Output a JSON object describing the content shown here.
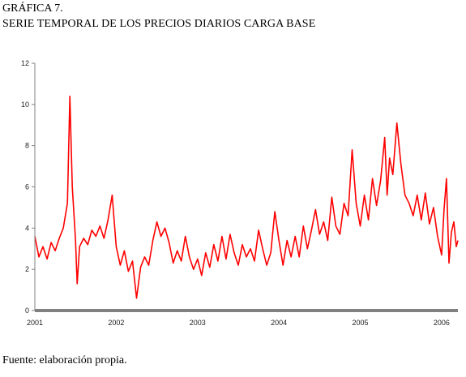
{
  "header": {
    "label": "GRÁFICA 7.",
    "title": "SERIE TEMPORAL DE LOS PRECIOS DIARIOS CARGA BASE"
  },
  "footer": {
    "source": "Fuente: elaboración propia."
  },
  "chart_data": {
    "type": "line",
    "title": "SERIE TEMPORAL DE LOS PRECIOS DIARIOS CARGA BASE",
    "xlabel": "",
    "ylabel": "",
    "ylim": [
      0,
      12
    ],
    "yticks": [
      0,
      2,
      4,
      6,
      8,
      10,
      12
    ],
    "xticks": [
      {
        "label": "2001",
        "value": 2001.0
      },
      {
        "label": "2002",
        "value": 2002.0
      },
      {
        "label": "2003",
        "value": 2003.0
      },
      {
        "label": "2004",
        "value": 2004.0
      },
      {
        "label": "2005",
        "value": 2005.0
      },
      {
        "label": "2006",
        "value": 2006.0
      }
    ],
    "xlim": [
      2001.0,
      2006.2
    ],
    "grid": false,
    "legend": "none",
    "color": "#ff0000",
    "axis_color": "#808080",
    "series": [
      {
        "values": [
          {
            "x": 2001.0,
            "y": 3.6
          },
          {
            "x": 2001.05,
            "y": 2.6
          },
          {
            "x": 2001.1,
            "y": 3.1
          },
          {
            "x": 2001.15,
            "y": 2.5
          },
          {
            "x": 2001.2,
            "y": 3.3
          },
          {
            "x": 2001.25,
            "y": 2.9
          },
          {
            "x": 2001.3,
            "y": 3.5
          },
          {
            "x": 2001.35,
            "y": 4.0
          },
          {
            "x": 2001.4,
            "y": 5.2
          },
          {
            "x": 2001.43,
            "y": 10.4
          },
          {
            "x": 2001.46,
            "y": 6.0
          },
          {
            "x": 2001.5,
            "y": 3.4
          },
          {
            "x": 2001.52,
            "y": 1.3
          },
          {
            "x": 2001.55,
            "y": 3.1
          },
          {
            "x": 2001.6,
            "y": 3.5
          },
          {
            "x": 2001.65,
            "y": 3.2
          },
          {
            "x": 2001.7,
            "y": 3.9
          },
          {
            "x": 2001.75,
            "y": 3.6
          },
          {
            "x": 2001.8,
            "y": 4.1
          },
          {
            "x": 2001.85,
            "y": 3.5
          },
          {
            "x": 2001.9,
            "y": 4.4
          },
          {
            "x": 2001.95,
            "y": 5.6
          },
          {
            "x": 2002.0,
            "y": 3.1
          },
          {
            "x": 2002.05,
            "y": 2.2
          },
          {
            "x": 2002.1,
            "y": 2.9
          },
          {
            "x": 2002.15,
            "y": 1.9
          },
          {
            "x": 2002.2,
            "y": 2.4
          },
          {
            "x": 2002.25,
            "y": 0.6
          },
          {
            "x": 2002.3,
            "y": 2.1
          },
          {
            "x": 2002.35,
            "y": 2.6
          },
          {
            "x": 2002.4,
            "y": 2.2
          },
          {
            "x": 2002.45,
            "y": 3.4
          },
          {
            "x": 2002.5,
            "y": 4.3
          },
          {
            "x": 2002.55,
            "y": 3.6
          },
          {
            "x": 2002.6,
            "y": 4.0
          },
          {
            "x": 2002.65,
            "y": 3.3
          },
          {
            "x": 2002.7,
            "y": 2.3
          },
          {
            "x": 2002.75,
            "y": 2.9
          },
          {
            "x": 2002.8,
            "y": 2.4
          },
          {
            "x": 2002.85,
            "y": 3.6
          },
          {
            "x": 2002.9,
            "y": 2.6
          },
          {
            "x": 2002.95,
            "y": 2.0
          },
          {
            "x": 2003.0,
            "y": 2.5
          },
          {
            "x": 2003.05,
            "y": 1.7
          },
          {
            "x": 2003.1,
            "y": 2.8
          },
          {
            "x": 2003.15,
            "y": 2.1
          },
          {
            "x": 2003.2,
            "y": 3.2
          },
          {
            "x": 2003.25,
            "y": 2.4
          },
          {
            "x": 2003.3,
            "y": 3.6
          },
          {
            "x": 2003.35,
            "y": 2.5
          },
          {
            "x": 2003.4,
            "y": 3.7
          },
          {
            "x": 2003.45,
            "y": 2.8
          },
          {
            "x": 2003.5,
            "y": 2.2
          },
          {
            "x": 2003.55,
            "y": 3.2
          },
          {
            "x": 2003.6,
            "y": 2.6
          },
          {
            "x": 2003.65,
            "y": 3.0
          },
          {
            "x": 2003.7,
            "y": 2.4
          },
          {
            "x": 2003.75,
            "y": 3.9
          },
          {
            "x": 2003.8,
            "y": 3.0
          },
          {
            "x": 2003.85,
            "y": 2.2
          },
          {
            "x": 2003.9,
            "y": 2.8
          },
          {
            "x": 2003.95,
            "y": 4.8
          },
          {
            "x": 2004.0,
            "y": 3.4
          },
          {
            "x": 2004.05,
            "y": 2.2
          },
          {
            "x": 2004.1,
            "y": 3.4
          },
          {
            "x": 2004.15,
            "y": 2.6
          },
          {
            "x": 2004.2,
            "y": 3.6
          },
          {
            "x": 2004.25,
            "y": 2.6
          },
          {
            "x": 2004.3,
            "y": 4.1
          },
          {
            "x": 2004.35,
            "y": 3.0
          },
          {
            "x": 2004.4,
            "y": 3.9
          },
          {
            "x": 2004.45,
            "y": 4.9
          },
          {
            "x": 2004.5,
            "y": 3.7
          },
          {
            "x": 2004.55,
            "y": 4.3
          },
          {
            "x": 2004.6,
            "y": 3.4
          },
          {
            "x": 2004.65,
            "y": 5.5
          },
          {
            "x": 2004.7,
            "y": 4.1
          },
          {
            "x": 2004.75,
            "y": 3.7
          },
          {
            "x": 2004.8,
            "y": 5.2
          },
          {
            "x": 2004.85,
            "y": 4.6
          },
          {
            "x": 2004.9,
            "y": 7.8
          },
          {
            "x": 2004.95,
            "y": 5.2
          },
          {
            "x": 2005.0,
            "y": 4.1
          },
          {
            "x": 2005.05,
            "y": 5.6
          },
          {
            "x": 2005.1,
            "y": 4.4
          },
          {
            "x": 2005.15,
            "y": 6.4
          },
          {
            "x": 2005.2,
            "y": 5.1
          },
          {
            "x": 2005.25,
            "y": 6.3
          },
          {
            "x": 2005.3,
            "y": 8.4
          },
          {
            "x": 2005.33,
            "y": 5.6
          },
          {
            "x": 2005.36,
            "y": 7.4
          },
          {
            "x": 2005.4,
            "y": 6.6
          },
          {
            "x": 2005.45,
            "y": 9.1
          },
          {
            "x": 2005.5,
            "y": 7.1
          },
          {
            "x": 2005.55,
            "y": 5.6
          },
          {
            "x": 2005.6,
            "y": 5.2
          },
          {
            "x": 2005.65,
            "y": 4.6
          },
          {
            "x": 2005.7,
            "y": 5.6
          },
          {
            "x": 2005.75,
            "y": 4.4
          },
          {
            "x": 2005.8,
            "y": 5.7
          },
          {
            "x": 2005.85,
            "y": 4.2
          },
          {
            "x": 2005.9,
            "y": 5.0
          },
          {
            "x": 2005.95,
            "y": 3.6
          },
          {
            "x": 2006.0,
            "y": 2.7
          },
          {
            "x": 2006.03,
            "y": 4.9
          },
          {
            "x": 2006.06,
            "y": 6.4
          },
          {
            "x": 2006.09,
            "y": 2.3
          },
          {
            "x": 2006.12,
            "y": 3.8
          },
          {
            "x": 2006.15,
            "y": 4.3
          },
          {
            "x": 2006.18,
            "y": 3.1
          },
          {
            "x": 2006.2,
            "y": 3.4
          }
        ]
      }
    ]
  }
}
